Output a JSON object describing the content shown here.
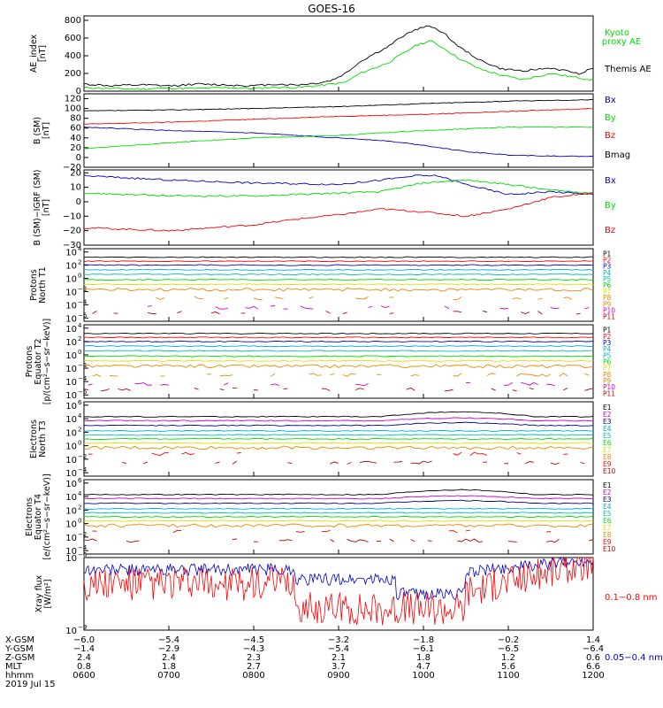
{
  "title": "GOES-16",
  "colors": {
    "black": "#000000",
    "red": "#ff0000",
    "green": "#00dd00",
    "blue": "#0000cc",
    "cyan": "#00aadd",
    "teal": "#00bbbb",
    "yellow": "#dddd00",
    "orange": "#ee8800",
    "magenta": "#cc00cc",
    "darkred": "#bb0000",
    "navy": "#000088",
    "purple": "#660099"
  },
  "chart_data": [
    {
      "type": "line",
      "ylabel": "AE_index\n[nT]",
      "ylabel_lines": [
        "AE_index",
        "[nT]"
      ],
      "yticks": [
        "800",
        "600",
        "400",
        "200",
        "0"
      ],
      "ylim": [
        0,
        850
      ],
      "legend": [
        "Kyoto\nproxy AE",
        "Themis AE"
      ],
      "legend_labels": {
        "kyoto1": "Kyoto",
        "kyoto2": "proxy AE",
        "themis": "Themis AE"
      },
      "series": [
        {
          "name": "Kyoto proxy AE",
          "color": "green",
          "x": [
            0,
            40,
            80,
            120,
            160,
            200,
            240,
            270,
            300,
            330,
            350,
            370,
            390,
            410,
            430,
            450,
            470,
            490,
            510,
            530,
            560,
            590,
            620,
            660,
            700,
            720
          ],
          "values": [
            40,
            30,
            25,
            35,
            30,
            40,
            30,
            45,
            40,
            60,
            80,
            100,
            200,
            260,
            320,
            420,
            520,
            570,
            480,
            370,
            250,
            180,
            130,
            200,
            150,
            130
          ]
        },
        {
          "name": "Themis AE",
          "color": "black",
          "x": [
            0,
            40,
            80,
            120,
            160,
            200,
            240,
            270,
            300,
            330,
            350,
            370,
            390,
            410,
            430,
            450,
            470,
            490,
            510,
            530,
            560,
            590,
            620,
            660,
            700,
            720
          ],
          "values": [
            80,
            60,
            70,
            60,
            80,
            70,
            60,
            80,
            70,
            90,
            120,
            200,
            330,
            420,
            500,
            620,
            700,
            740,
            650,
            500,
            350,
            250,
            230,
            260,
            200,
            260
          ]
        }
      ]
    },
    {
      "type": "line",
      "ylabel_lines": [
        "B (SM)",
        "[nT]"
      ],
      "yticks": [
        "120",
        "100",
        "80",
        "60",
        "40",
        "20",
        "0",
        "−20"
      ],
      "ylim": [
        -20,
        130
      ],
      "legend_labels": {
        "bx": "Bx",
        "by": "By",
        "bz": "Bz",
        "bmag": "Bmag"
      },
      "series": [
        {
          "name": "Bmag",
          "color": "black",
          "x": [
            0,
            120,
            240,
            360,
            480,
            600,
            720
          ],
          "values": [
            95,
            97,
            100,
            104,
            110,
            115,
            118
          ]
        },
        {
          "name": "Bz",
          "color": "red",
          "x": [
            0,
            120,
            240,
            360,
            480,
            600,
            720
          ],
          "values": [
            68,
            72,
            78,
            84,
            88,
            94,
            100
          ]
        },
        {
          "name": "Bx",
          "color": "blue",
          "x": [
            0,
            120,
            240,
            360,
            420,
            480,
            540,
            600,
            660,
            720
          ],
          "values": [
            62,
            55,
            50,
            40,
            35,
            25,
            12,
            5,
            3,
            2
          ]
        },
        {
          "name": "By",
          "color": "green",
          "x": [
            0,
            120,
            240,
            360,
            480,
            600,
            720
          ],
          "values": [
            18,
            30,
            40,
            45,
            55,
            62,
            62
          ]
        }
      ]
    },
    {
      "type": "line",
      "ylabel_lines": [
        "B (SM)−IGRF (SM)",
        "[nT]"
      ],
      "yticks": [
        "20",
        "10",
        "0",
        "−10",
        "−20",
        "−30"
      ],
      "ylim": [
        -30,
        22
      ],
      "legend_labels": {
        "bx": "Bx",
        "by": "By",
        "bz": "Bz"
      },
      "series": [
        {
          "name": "Bx",
          "color": "blue",
          "x": [
            0,
            120,
            240,
            360,
            420,
            470,
            500,
            540,
            600,
            660,
            720
          ],
          "values": [
            18,
            15,
            13,
            12,
            15,
            18,
            18,
            12,
            5,
            7,
            5
          ]
        },
        {
          "name": "By",
          "color": "green",
          "x": [
            0,
            120,
            240,
            360,
            420,
            480,
            540,
            600,
            660,
            720
          ],
          "values": [
            6,
            4,
            4,
            6,
            7,
            13,
            15,
            12,
            8,
            6
          ]
        },
        {
          "name": "Bz",
          "color": "red",
          "x": [
            0,
            120,
            240,
            300,
            360,
            420,
            480,
            540,
            600,
            660,
            720
          ],
          "values": [
            -18,
            -20,
            -16,
            -12,
            -9,
            -5,
            -7,
            -10,
            -5,
            3,
            6
          ]
        }
      ]
    },
    {
      "type": "line",
      "ylabel_lines": [
        "Protons",
        "North T1"
      ],
      "yticks_exp": [
        "4",
        "2",
        "0",
        "−2",
        "−4",
        "−6"
      ],
      "log_range": [
        -6.5,
        4.5
      ],
      "legend": [
        "P1",
        "P2",
        "P3",
        "P4",
        "P5",
        "P6",
        "P7",
        "P8",
        "P9",
        "P10",
        "P11"
      ],
      "levels": [
        3.2,
        2.6,
        2.0,
        1.3,
        0.6,
        -0.2,
        -0.9,
        -1.7,
        -3.0,
        -4.4,
        -5.2
      ]
    },
    {
      "type": "line",
      "ylabel_lines": [
        "Protons",
        "Equator T2",
        "[p/(cm²−s−sr−keV)]"
      ],
      "yticks_exp": [
        "4",
        "2",
        "0",
        "−2",
        "−4",
        "−6"
      ],
      "log_range": [
        -6.5,
        4.5
      ],
      "legend": [
        "P1",
        "P2",
        "P3",
        "P4",
        "P5",
        "P6",
        "P7",
        "P8",
        "P9",
        "P10",
        "P11"
      ],
      "levels": [
        3.2,
        2.6,
        2.0,
        1.3,
        0.6,
        -0.2,
        -0.9,
        -1.7,
        -3.0,
        -4.4,
        -5.2
      ]
    },
    {
      "type": "line",
      "ylabel_lines": [
        "Electrons",
        "North T3"
      ],
      "yticks_exp": [
        "6",
        "4",
        "2",
        "0",
        "−2",
        "−4"
      ],
      "log_range": [
        -4.5,
        6.5
      ],
      "legend": [
        "E1",
        "E2",
        "E3",
        "E4",
        "E5",
        "E6",
        "E7",
        "E8",
        "E9",
        "E10"
      ],
      "levels": [
        4.3,
        3.7,
        3.0,
        2.2,
        1.6,
        1.0,
        0.4,
        -0.3,
        -1.2,
        -2.5
      ]
    },
    {
      "type": "line",
      "ylabel_lines": [
        "Electrons",
        "Equator T4",
        "[e/(cm²−s−sr−keV)]"
      ],
      "yticks_exp": [
        "6",
        "4",
        "2",
        "0",
        "−2",
        "−4"
      ],
      "log_range": [
        -4.5,
        6.5
      ],
      "legend": [
        "E1",
        "E2",
        "E3",
        "E4",
        "E5",
        "E6",
        "E7",
        "E8",
        "E9",
        "E10"
      ],
      "levels": [
        4.3,
        3.7,
        3.0,
        2.2,
        1.6,
        1.0,
        0.4,
        -0.3,
        -1.2,
        -2.5
      ]
    },
    {
      "type": "line",
      "ylabel_lines": [
        "Xray flux",
        "[W/m²]"
      ],
      "yticks_exp": [
        "−6",
        "−9"
      ],
      "log_range": [
        -9,
        -6
      ],
      "legend_labels": {
        "long": "0.1−0.8 nm",
        "short": "0.05−0.4 nm"
      }
    }
  ],
  "xaxis": {
    "row_labels": [
      "X-GSM",
      "Y-GSM",
      "Z-GSM",
      "MLT",
      "hhmm",
      "2019 Jul 15"
    ],
    "columns": [
      {
        "x": "−6.0",
        "y": "−1.4",
        "z": "2.4",
        "mlt": "0.8",
        "hhmm": "0600"
      },
      {
        "x": "−5.4",
        "y": "−2.9",
        "z": "2.4",
        "mlt": "1.8",
        "hhmm": "0700"
      },
      {
        "x": "−4.5",
        "y": "−4.3",
        "z": "2.3",
        "mlt": "2.7",
        "hhmm": "0800"
      },
      {
        "x": "−3.2",
        "y": "−5.4",
        "z": "2.1",
        "mlt": "3.7",
        "hhmm": "0900"
      },
      {
        "x": "−1.8",
        "y": "−6.1",
        "z": "1.8",
        "mlt": "4.7",
        "hhmm": "1000"
      },
      {
        "x": "−0.2",
        "y": "−6.5",
        "z": "1.2",
        "mlt": "5.6",
        "hhmm": "1100"
      },
      {
        "x": "1.4",
        "y": "−6.4",
        "z": "0.6",
        "mlt": "6.6",
        "hhmm": "1200"
      }
    ]
  }
}
